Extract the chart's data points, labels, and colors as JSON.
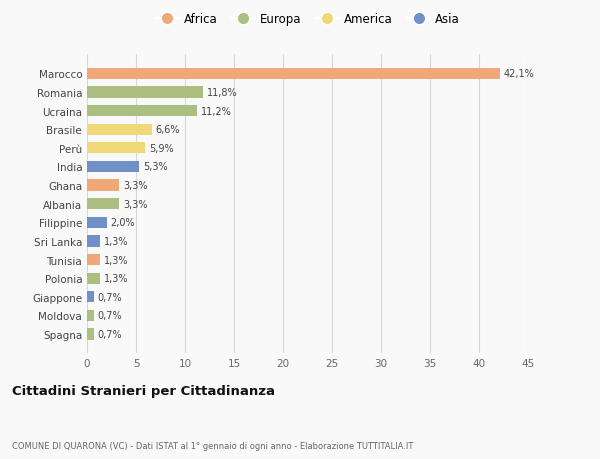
{
  "countries": [
    "Marocco",
    "Romania",
    "Ucraina",
    "Brasile",
    "Perù",
    "India",
    "Ghana",
    "Albania",
    "Filippine",
    "Sri Lanka",
    "Tunisia",
    "Polonia",
    "Giappone",
    "Moldova",
    "Spagna"
  ],
  "values": [
    42.1,
    11.8,
    11.2,
    6.6,
    5.9,
    5.3,
    3.3,
    3.3,
    2.0,
    1.3,
    1.3,
    1.3,
    0.7,
    0.7,
    0.7
  ],
  "labels": [
    "42,1%",
    "11,8%",
    "11,2%",
    "6,6%",
    "5,9%",
    "5,3%",
    "3,3%",
    "3,3%",
    "2,0%",
    "1,3%",
    "1,3%",
    "1,3%",
    "0,7%",
    "0,7%",
    "0,7%"
  ],
  "continents": [
    "Africa",
    "Europa",
    "Europa",
    "America",
    "America",
    "Asia",
    "Africa",
    "Europa",
    "Asia",
    "Asia",
    "Africa",
    "Europa",
    "Asia",
    "Europa",
    "Europa"
  ],
  "continent_colors": {
    "Africa": "#F0A878",
    "Europa": "#AABF80",
    "America": "#F0D878",
    "Asia": "#7090C8"
  },
  "legend_labels": [
    "Africa",
    "Europa",
    "America",
    "Asia"
  ],
  "legend_colors": [
    "#F0A878",
    "#AABF80",
    "#F0D878",
    "#7090C8"
  ],
  "xlim": [
    0,
    45
  ],
  "xticks": [
    0,
    5,
    10,
    15,
    20,
    25,
    30,
    35,
    40,
    45
  ],
  "title": "Cittadini Stranieri per Cittadinanza",
  "subtitle": "COMUNE DI QUARONA (VC) - Dati ISTAT al 1° gennaio di ogni anno - Elaborazione TUTTITALIA.IT",
  "background_color": "#f9f9f9",
  "grid_color": "#d8d8d8",
  "bar_height": 0.6
}
